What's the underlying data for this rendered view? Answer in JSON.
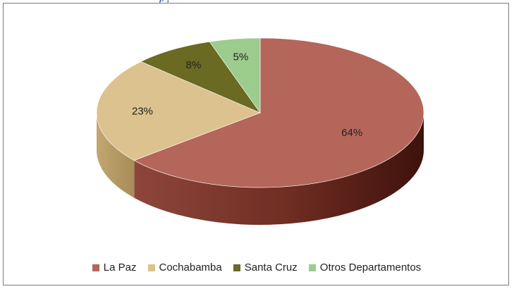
{
  "header": {
    "caption_fragment": "p                                                    ,"
  },
  "chart_data": {
    "type": "pie",
    "title": "",
    "categories": [
      "La Paz",
      "Cochabamba",
      "Santa Cruz",
      "Otros Departamentos"
    ],
    "values": [
      64,
      23,
      8,
      5
    ],
    "labels": [
      "64%",
      "23%",
      "8%",
      "5%"
    ],
    "colors": [
      "#b4665a",
      "#dcc28e",
      "#6b6a23",
      "#9ccc8e"
    ],
    "style": "3d",
    "legend_position": "bottom"
  }
}
